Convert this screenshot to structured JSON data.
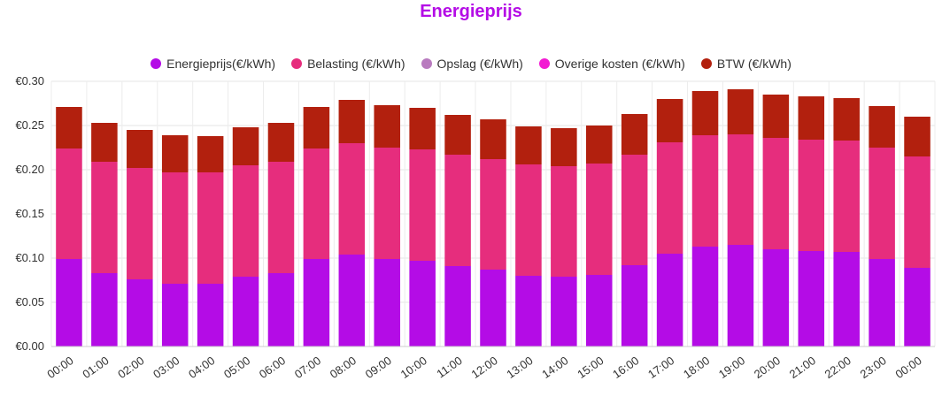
{
  "chart_data": {
    "type": "bar",
    "stacked": true,
    "title": "Energieprijs",
    "xlabel": "",
    "ylabel": "",
    "ylim": [
      0,
      0.3
    ],
    "yticks": [
      0.0,
      0.05,
      0.1,
      0.15,
      0.2,
      0.25,
      0.3
    ],
    "ytick_labels": [
      "€0.00",
      "€0.05",
      "€0.10",
      "€0.15",
      "€0.20",
      "€0.25",
      "€0.30"
    ],
    "grid": true,
    "legend_position": "top-center",
    "categories": [
      "00:00",
      "01:00",
      "02:00",
      "03:00",
      "04:00",
      "05:00",
      "06:00",
      "07:00",
      "08:00",
      "09:00",
      "10:00",
      "11:00",
      "12:00",
      "13:00",
      "14:00",
      "15:00",
      "16:00",
      "17:00",
      "18:00",
      "19:00",
      "20:00",
      "21:00",
      "22:00",
      "23:00",
      "00:00"
    ],
    "series": [
      {
        "name": "Energieprijs(€/kWh)",
        "color": "#b40ce6",
        "values": [
          0.099,
          0.083,
          0.076,
          0.071,
          0.071,
          0.079,
          0.083,
          0.099,
          0.104,
          0.099,
          0.097,
          0.091,
          0.087,
          0.08,
          0.079,
          0.081,
          0.092,
          0.105,
          0.113,
          0.115,
          0.11,
          0.108,
          0.107,
          0.099,
          0.089
        ]
      },
      {
        "name": "Belasting (€/kWh)",
        "color": "#e62d7d",
        "values": [
          0.125,
          0.126,
          0.126,
          0.126,
          0.126,
          0.126,
          0.126,
          0.125,
          0.126,
          0.126,
          0.126,
          0.126,
          0.125,
          0.126,
          0.125,
          0.126,
          0.125,
          0.126,
          0.126,
          0.125,
          0.126,
          0.126,
          0.126,
          0.126,
          0.126
        ]
      },
      {
        "name": "Opslag (€/kWh)",
        "color": "#b97bbf",
        "values": [
          0,
          0,
          0,
          0,
          0,
          0,
          0,
          0,
          0,
          0,
          0,
          0,
          0,
          0,
          0,
          0,
          0,
          0,
          0,
          0,
          0,
          0,
          0,
          0,
          0
        ]
      },
      {
        "name": "Overige kosten (€/kWh)",
        "color": "#f21ad2",
        "values": [
          0,
          0,
          0,
          0,
          0,
          0,
          0,
          0,
          0,
          0,
          0,
          0,
          0,
          0,
          0,
          0,
          0,
          0,
          0,
          0,
          0,
          0,
          0,
          0,
          0
        ]
      },
      {
        "name": "BTW (€/kWh)",
        "color": "#b2200e",
        "values": [
          0.047,
          0.044,
          0.043,
          0.042,
          0.041,
          0.043,
          0.044,
          0.047,
          0.049,
          0.048,
          0.047,
          0.045,
          0.045,
          0.043,
          0.043,
          0.043,
          0.046,
          0.049,
          0.05,
          0.051,
          0.049,
          0.049,
          0.048,
          0.047,
          0.045
        ]
      }
    ]
  }
}
